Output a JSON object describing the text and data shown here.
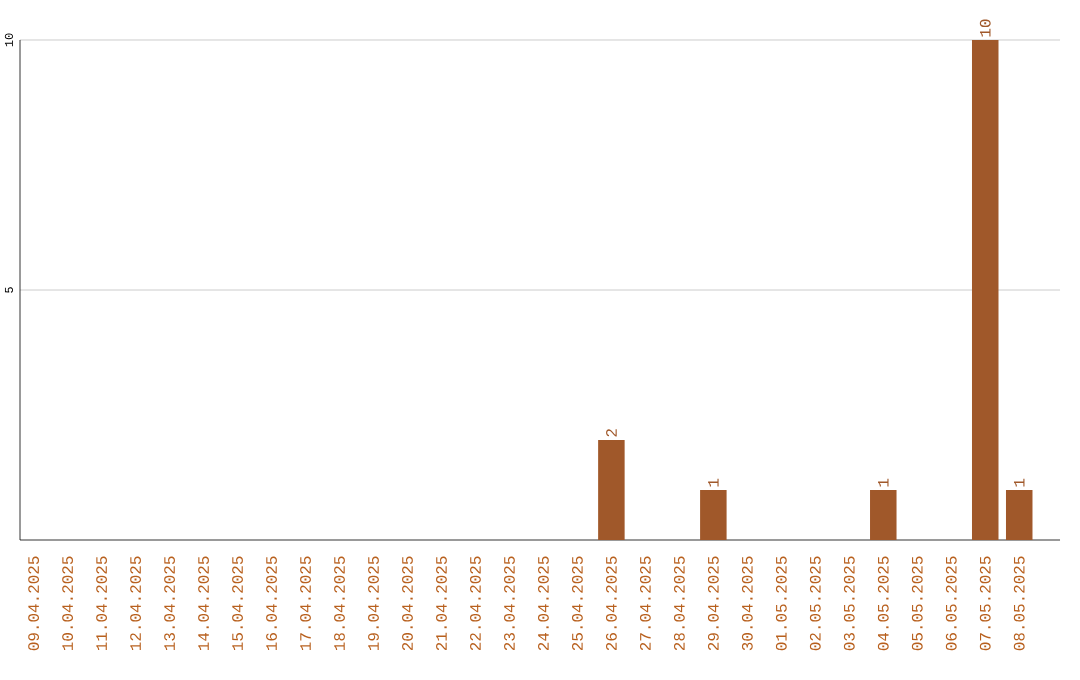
{
  "chart_data": {
    "type": "bar",
    "categories": [
      "09.04.2025",
      "10.04.2025",
      "11.04.2025",
      "12.04.2025",
      "13.04.2025",
      "14.04.2025",
      "15.04.2025",
      "16.04.2025",
      "17.04.2025",
      "18.04.2025",
      "19.04.2025",
      "20.04.2025",
      "21.04.2025",
      "22.04.2025",
      "23.04.2025",
      "24.04.2025",
      "25.04.2025",
      "26.04.2025",
      "27.04.2025",
      "28.04.2025",
      "29.04.2025",
      "30.04.2025",
      "01.05.2025",
      "02.05.2025",
      "03.05.2025",
      "04.05.2025",
      "05.05.2025",
      "06.05.2025",
      "07.05.2025",
      "08.05.2025"
    ],
    "values": [
      0,
      0,
      0,
      0,
      0,
      0,
      0,
      0,
      0,
      0,
      0,
      0,
      0,
      0,
      0,
      0,
      0,
      2,
      0,
      0,
      1,
      0,
      0,
      0,
      0,
      1,
      0,
      0,
      10,
      1
    ],
    "value_labels": [
      null,
      null,
      null,
      null,
      null,
      null,
      null,
      null,
      null,
      null,
      null,
      null,
      null,
      null,
      null,
      null,
      null,
      "2",
      null,
      null,
      "1",
      null,
      null,
      null,
      null,
      "1",
      null,
      null,
      "10",
      "1"
    ],
    "color": "#a0582a",
    "ylim": [
      0,
      10
    ],
    "yticks": [
      5,
      10
    ],
    "grid": "y"
  }
}
